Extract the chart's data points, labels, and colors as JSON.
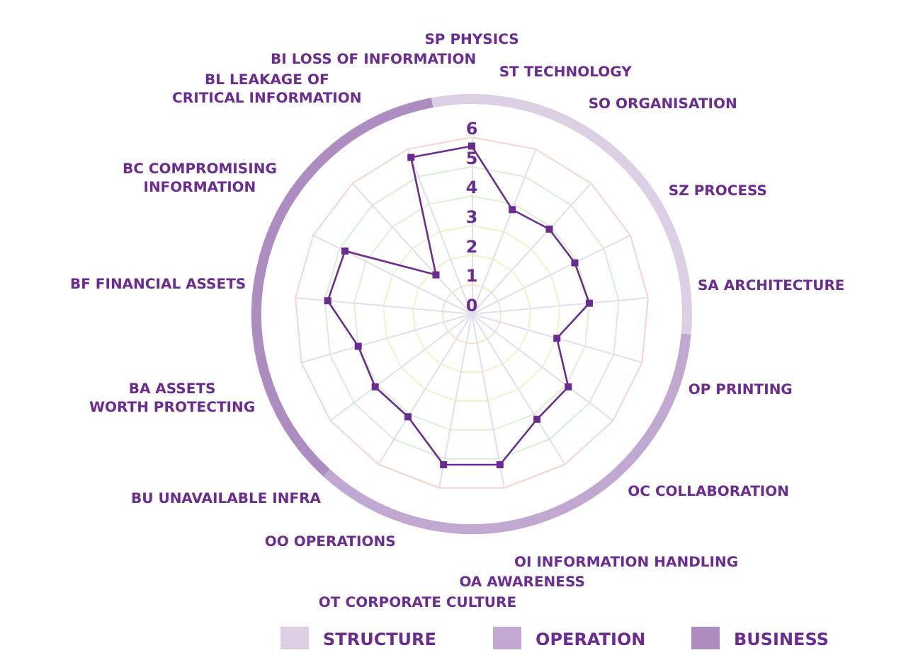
{
  "chart_data": {
    "type": "radar",
    "categories": [
      "SP PHYSICS",
      "ST TECHNOLOGY",
      "SO ORGANISATION",
      "SZ PROCESS",
      "SA ARCHITECTURE",
      "OP PRINTING",
      "OC COLLABORATION",
      "OI INFORMATION HANDLING",
      "OA AWARENESS",
      "OT CORPORATE CULTURE",
      "OO OPERATIONS",
      "BU UNAVAILABLE INFRA",
      "BA ASSETS\nWORTH PROTECTING",
      "BF FINANCIAL ASSETS",
      "BC COMPROMISING\nINFORMATION",
      "BL LEAKAGE OF\nCRITICAL INFORMATION",
      "BI LOSS OF INFORMATION"
    ],
    "series": [
      {
        "color": "#6b2c91",
        "values": [
          5.7,
          3.8,
          3.9,
          3.9,
          4.0,
          3.0,
          4.1,
          4.2,
          5.2,
          5.2,
          4.1,
          4.1,
          4.0,
          4.9,
          4.8,
          1.8,
          5.7
        ]
      }
    ],
    "ylim": [
      0,
      6
    ],
    "yticks": [
      0,
      1,
      2,
      3,
      4,
      5,
      6
    ],
    "grid": true,
    "marker": "square",
    "line_style": "solid",
    "annotations": [
      "STRUCTURE",
      "OPERATION",
      "BUSINESS"
    ]
  }
}
